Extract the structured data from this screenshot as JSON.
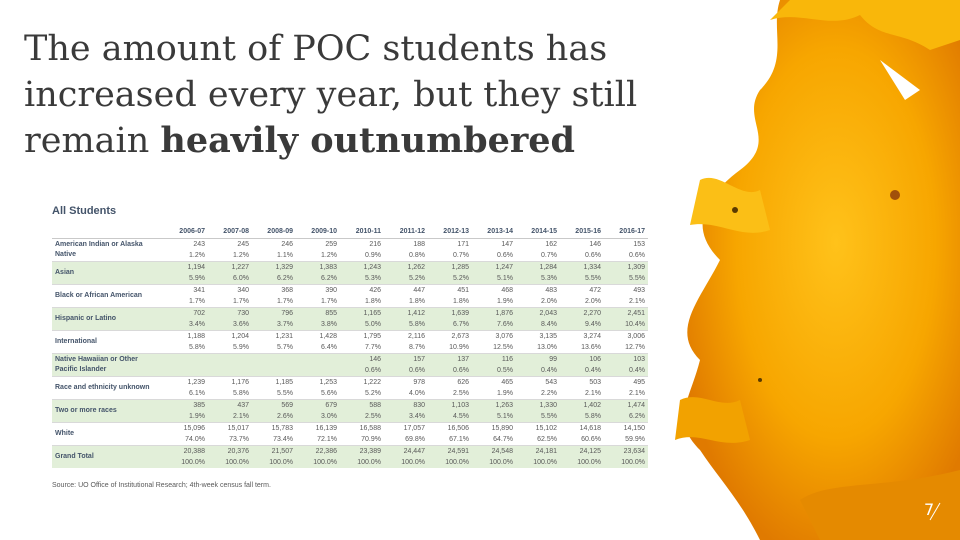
{
  "slide": {
    "title": {
      "text": "The amount of POC students has increased every year, but they still remain",
      "bold": "heavily outnumbered"
    },
    "table": {
      "caption": "All Students",
      "columns": [
        "2006-07",
        "2007-08",
        "2008-09",
        "2009-10",
        "2010-11",
        "2011-12",
        "2012-13",
        "2013-14",
        "2014-15",
        "2015-16",
        "2016-17"
      ],
      "rows": [
        {
          "label": "American Indian or Alaska Native",
          "counts": [
            "243",
            "245",
            "246",
            "259",
            "216",
            "188",
            "171",
            "147",
            "162",
            "146",
            "153"
          ],
          "percents": [
            "1.2%",
            "1.2%",
            "1.1%",
            "1.2%",
            "0.9%",
            "0.8%",
            "0.7%",
            "0.6%",
            "0.7%",
            "0.6%",
            "0.6%"
          ]
        },
        {
          "label": "Asian",
          "counts": [
            "1,194",
            "1,227",
            "1,329",
            "1,383",
            "1,243",
            "1,262",
            "1,285",
            "1,247",
            "1,284",
            "1,334",
            "1,309"
          ],
          "percents": [
            "5.9%",
            "6.0%",
            "6.2%",
            "6.2%",
            "5.3%",
            "5.2%",
            "5.2%",
            "5.1%",
            "5.3%",
            "5.5%",
            "5.5%"
          ]
        },
        {
          "label": "Black or African American",
          "counts": [
            "341",
            "340",
            "368",
            "390",
            "426",
            "447",
            "451",
            "468",
            "483",
            "472",
            "493"
          ],
          "percents": [
            "1.7%",
            "1.7%",
            "1.7%",
            "1.7%",
            "1.8%",
            "1.8%",
            "1.8%",
            "1.9%",
            "2.0%",
            "2.0%",
            "2.1%"
          ]
        },
        {
          "label": "Hispanic or Latino",
          "counts": [
            "702",
            "730",
            "796",
            "855",
            "1,165",
            "1,412",
            "1,639",
            "1,876",
            "2,043",
            "2,270",
            "2,451"
          ],
          "percents": [
            "3.4%",
            "3.6%",
            "3.7%",
            "3.8%",
            "5.0%",
            "5.8%",
            "6.7%",
            "7.6%",
            "8.4%",
            "9.4%",
            "10.4%"
          ]
        },
        {
          "label": "International",
          "counts": [
            "1,188",
            "1,204",
            "1,231",
            "1,428",
            "1,795",
            "2,116",
            "2,673",
            "3,076",
            "3,135",
            "3,274",
            "3,006"
          ],
          "percents": [
            "5.8%",
            "5.9%",
            "5.7%",
            "6.4%",
            "7.7%",
            "8.7%",
            "10.9%",
            "12.5%",
            "13.0%",
            "13.6%",
            "12.7%"
          ]
        },
        {
          "label": "Native Hawaiian or Other Pacific Islander",
          "counts": [
            null,
            null,
            null,
            null,
            "146",
            "157",
            "137",
            "116",
            "99",
            "106",
            "103"
          ],
          "percents": [
            null,
            null,
            null,
            null,
            "0.6%",
            "0.6%",
            "0.6%",
            "0.5%",
            "0.4%",
            "0.4%",
            "0.4%"
          ]
        },
        {
          "label": "Race and ethnicity unknown",
          "counts": [
            "1,239",
            "1,176",
            "1,185",
            "1,253",
            "1,222",
            "978",
            "626",
            "465",
            "543",
            "503",
            "495"
          ],
          "percents": [
            "6.1%",
            "5.8%",
            "5.5%",
            "5.6%",
            "5.2%",
            "4.0%",
            "2.5%",
            "1.9%",
            "2.2%",
            "2.1%",
            "2.1%"
          ]
        },
        {
          "label": "Two or more races",
          "counts": [
            "385",
            "437",
            "569",
            "679",
            "588",
            "830",
            "1,103",
            "1,263",
            "1,330",
            "1,402",
            "1,474"
          ],
          "percents": [
            "1.9%",
            "2.1%",
            "2.6%",
            "3.0%",
            "2.5%",
            "3.4%",
            "4.5%",
            "5.1%",
            "5.5%",
            "5.8%",
            "6.2%"
          ]
        },
        {
          "label": "White",
          "counts": [
            "15,096",
            "15,017",
            "15,783",
            "16,139",
            "16,588",
            "17,057",
            "16,506",
            "15,890",
            "15,102",
            "14,618",
            "14,150"
          ],
          "percents": [
            "74.0%",
            "73.7%",
            "73.4%",
            "72.1%",
            "70.9%",
            "69.8%",
            "67.1%",
            "64.7%",
            "62.5%",
            "60.6%",
            "59.9%"
          ]
        },
        {
          "label": "Grand Total",
          "counts": [
            "20,388",
            "20,376",
            "21,507",
            "22,386",
            "23,389",
            "24,447",
            "24,591",
            "24,548",
            "24,181",
            "24,125",
            "23,634"
          ],
          "percents": [
            "100.0%",
            "100.0%",
            "100.0%",
            "100.0%",
            "100.0%",
            "100.0%",
            "100.0%",
            "100.0%",
            "100.0%",
            "100.0%",
            "100.0%"
          ]
        }
      ],
      "source": "Source: UO Office of Institutional Research; 4th-week census fall term."
    },
    "page_number": "7"
  }
}
